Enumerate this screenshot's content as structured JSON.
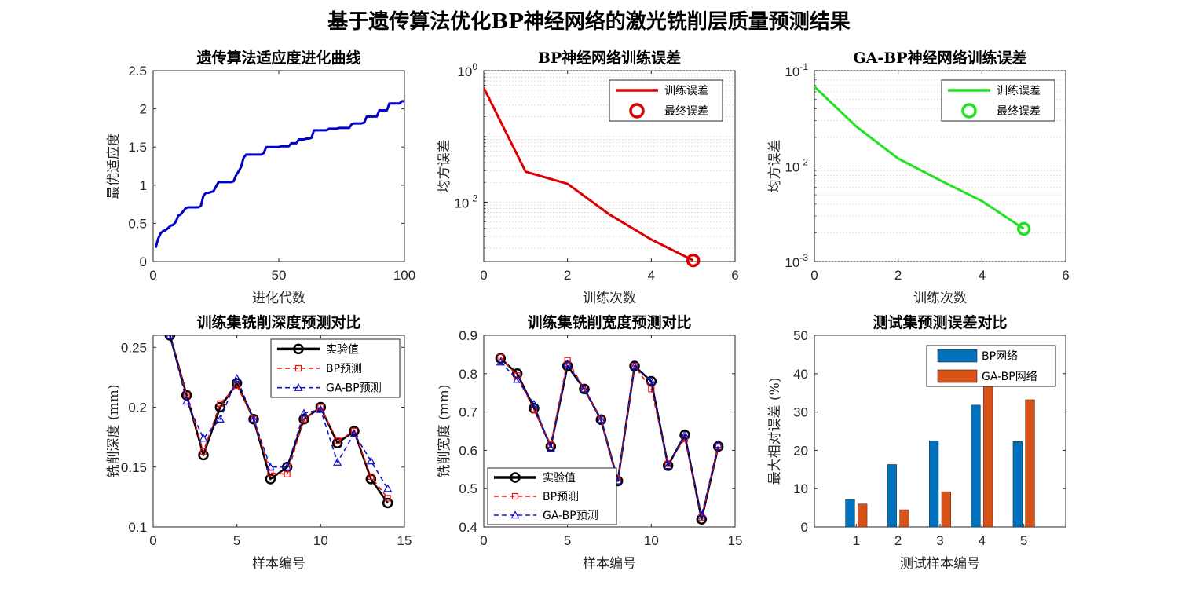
{
  "figure_title": "基于遗传算法优化BP神经网络的激光铣削层质量预测结果",
  "chart_data": [
    {
      "id": "fitness",
      "type": "line",
      "title": "遗传算法适应度进化曲线",
      "xlabel": "进化代数",
      "ylabel": "最优适应度",
      "xlim": [
        0,
        100
      ],
      "ylim": [
        0,
        2.5
      ],
      "xticks": [
        0,
        50,
        100
      ],
      "yticks": [
        0,
        0.5,
        1,
        1.5,
        2,
        2.5
      ],
      "grid": false,
      "series": [
        {
          "name": "最优适应度",
          "color": "#0000cc",
          "x": [
            1,
            2,
            3,
            4,
            5,
            6,
            7,
            8,
            9,
            10,
            11,
            12,
            13,
            14,
            15,
            16,
            17,
            18,
            19,
            20,
            21,
            22,
            23,
            24,
            25,
            26,
            27,
            28,
            29,
            30,
            31,
            32,
            33,
            34,
            35,
            36,
            37,
            38,
            39,
            40,
            41,
            42,
            43,
            44,
            45,
            46,
            47,
            48,
            49,
            50,
            51,
            52,
            53,
            54,
            55,
            56,
            57,
            58,
            59,
            60,
            61,
            62,
            63,
            64,
            65,
            66,
            67,
            68,
            69,
            70,
            71,
            72,
            73,
            74,
            75,
            76,
            77,
            78,
            79,
            80,
            81,
            82,
            83,
            84,
            85,
            86,
            87,
            88,
            89,
            90,
            91,
            92,
            93,
            94,
            95,
            96,
            97,
            98,
            99,
            100
          ],
          "values": [
            0.18,
            0.3,
            0.37,
            0.4,
            0.41,
            0.44,
            0.47,
            0.48,
            0.52,
            0.6,
            0.62,
            0.66,
            0.7,
            0.71,
            0.71,
            0.71,
            0.71,
            0.71,
            0.73,
            0.86,
            0.9,
            0.9,
            0.91,
            0.92,
            0.98,
            1.04,
            1.04,
            1.04,
            1.04,
            1.04,
            1.04,
            1.05,
            1.13,
            1.18,
            1.24,
            1.36,
            1.4,
            1.4,
            1.4,
            1.4,
            1.4,
            1.4,
            1.4,
            1.42,
            1.5,
            1.5,
            1.5,
            1.5,
            1.5,
            1.5,
            1.51,
            1.51,
            1.51,
            1.51,
            1.55,
            1.55,
            1.55,
            1.6,
            1.6,
            1.6,
            1.61,
            1.61,
            1.62,
            1.72,
            1.72,
            1.72,
            1.72,
            1.72,
            1.72,
            1.74,
            1.74,
            1.74,
            1.74,
            1.75,
            1.75,
            1.75,
            1.75,
            1.75,
            1.8,
            1.81,
            1.81,
            1.81,
            1.81,
            1.82,
            1.9,
            1.9,
            1.9,
            1.9,
            1.9,
            1.98,
            1.98,
            1.98,
            1.98,
            2.07,
            2.07,
            2.07,
            2.07,
            2.07,
            2.1,
            2.1
          ]
        }
      ]
    },
    {
      "id": "bp_error",
      "type": "line",
      "title": "BP神经网络训练误差",
      "xlabel": "训练次数",
      "ylabel": "均方误差",
      "xscale": "linear",
      "yscale": "log",
      "xlim": [
        0,
        6
      ],
      "ylim": [
        0.00125,
        1
      ],
      "xticks": [
        0,
        2,
        4,
        6
      ],
      "yticks": [
        {
          "base": "10",
          "exp": "0",
          "value": 1
        },
        {
          "base": "10",
          "exp": "-2",
          "value": 0.01
        }
      ],
      "grid": "minor-y",
      "legend_position": "top-right",
      "series": [
        {
          "name": "训练误差",
          "color": "#dd0000",
          "x": [
            0,
            1,
            2,
            3,
            4,
            5
          ],
          "values": [
            0.55,
            0.029,
            0.019,
            0.0065,
            0.0027,
            0.0013
          ]
        },
        {
          "name": "最终误差",
          "color": "#dd0000",
          "marker": "circle",
          "x": [
            5
          ],
          "values": [
            0.0013
          ]
        }
      ]
    },
    {
      "id": "gabp_error",
      "type": "line",
      "title": "GA-BP神经网络训练误差",
      "xlabel": "训练次数",
      "ylabel": "均方误差",
      "xscale": "linear",
      "yscale": "log",
      "xlim": [
        0,
        6
      ],
      "ylim": [
        0.001,
        0.1
      ],
      "xticks": [
        0,
        2,
        4,
        6
      ],
      "yticks": [
        {
          "base": "10",
          "exp": "-1",
          "value": 0.1
        },
        {
          "base": "10",
          "exp": "-2",
          "value": 0.01
        },
        {
          "base": "10",
          "exp": "-3",
          "value": 0.001
        }
      ],
      "grid": "minor-y",
      "legend_position": "top-right",
      "series": [
        {
          "name": "训练误差",
          "color": "#22e022",
          "x": [
            0,
            1,
            2,
            3,
            4,
            5
          ],
          "values": [
            0.068,
            0.026,
            0.012,
            0.0071,
            0.0043,
            0.0022
          ]
        },
        {
          "name": "最终误差",
          "color": "#22e022",
          "marker": "circle",
          "x": [
            5
          ],
          "values": [
            0.0022
          ]
        }
      ]
    },
    {
      "id": "depth",
      "type": "line",
      "title": "训练集铣削深度预测对比",
      "xlabel": "样本编号",
      "ylabel": "铣削深度 (mm)",
      "xlim": [
        0,
        15
      ],
      "ylim": [
        0.1,
        0.26
      ],
      "xticks": [
        0,
        5,
        10,
        15
      ],
      "yticks": [
        0.1,
        0.15,
        0.2,
        0.25
      ],
      "grid": false,
      "legend_position": "top-right",
      "x": [
        1,
        2,
        3,
        4,
        5,
        6,
        7,
        8,
        9,
        10,
        11,
        12,
        13,
        14
      ],
      "series": [
        {
          "name": "实验值",
          "color": "#000000",
          "marker": "circle",
          "values": [
            0.26,
            0.21,
            0.16,
            0.2,
            0.22,
            0.19,
            0.14,
            0.15,
            0.19,
            0.2,
            0.17,
            0.18,
            0.14,
            0.12
          ]
        },
        {
          "name": "BP预测",
          "color": "#ee1111",
          "marker": "square",
          "dashed": true,
          "values": [
            0.26,
            0.21,
            0.163,
            0.203,
            0.218,
            0.19,
            0.145,
            0.144,
            0.19,
            0.2,
            0.172,
            0.18,
            0.142,
            0.124
          ]
        },
        {
          "name": "GA-BP预测",
          "color": "#1111cc",
          "marker": "triangle",
          "dashed": true,
          "values": [
            0.26,
            0.205,
            0.174,
            0.19,
            0.224,
            0.19,
            0.15,
            0.15,
            0.195,
            0.198,
            0.154,
            0.178,
            0.155,
            0.132
          ]
        }
      ]
    },
    {
      "id": "width",
      "type": "line",
      "title": "训练集铣削宽度预测对比",
      "xlabel": "样本编号",
      "ylabel": "铣削宽度 (mm)",
      "xlim": [
        0,
        15
      ],
      "ylim": [
        0.4,
        0.9
      ],
      "xticks": [
        0,
        5,
        10,
        15
      ],
      "yticks": [
        0.4,
        0.5,
        0.6,
        0.7,
        0.8,
        0.9
      ],
      "grid": false,
      "legend_position": "bottom-left",
      "x": [
        1,
        2,
        3,
        4,
        5,
        6,
        7,
        8,
        9,
        10,
        11,
        12,
        13,
        14
      ],
      "series": [
        {
          "name": "实验值",
          "color": "#000000",
          "marker": "circle",
          "values": [
            0.84,
            0.8,
            0.71,
            0.61,
            0.82,
            0.76,
            0.68,
            0.52,
            0.82,
            0.78,
            0.56,
            0.64,
            0.42,
            0.61
          ]
        },
        {
          "name": "BP预测",
          "color": "#ee1111",
          "marker": "square",
          "dashed": true,
          "values": [
            0.843,
            0.795,
            0.705,
            0.615,
            0.835,
            0.76,
            0.68,
            0.52,
            0.82,
            0.76,
            0.565,
            0.63,
            0.425,
            0.61
          ]
        },
        {
          "name": "GA-BP预测",
          "color": "#1111cc",
          "marker": "triangle",
          "dashed": true,
          "values": [
            0.83,
            0.785,
            0.72,
            0.605,
            0.825,
            0.76,
            0.68,
            0.52,
            0.82,
            0.78,
            0.56,
            0.64,
            0.43,
            0.615
          ]
        }
      ]
    },
    {
      "id": "test_error",
      "type": "bar",
      "title": "测试集预测误差对比",
      "xlabel": "测试样本编号",
      "ylabel": "最大相对误差 (%)",
      "ylim": [
        0,
        50
      ],
      "yticks": [
        0,
        10,
        20,
        30,
        40,
        50
      ],
      "grid": false,
      "legend_position": "top-right",
      "categories": [
        "1",
        "2",
        "3",
        "4",
        "5"
      ],
      "series": [
        {
          "name": "BP网络",
          "color": "#0072bd",
          "values": [
            7.2,
            16.3,
            22.5,
            31.8,
            22.3
          ]
        },
        {
          "name": "GA-BP网络",
          "color": "#d95319",
          "values": [
            6.0,
            4.5,
            9.2,
            37.5,
            33.2
          ]
        }
      ]
    }
  ]
}
